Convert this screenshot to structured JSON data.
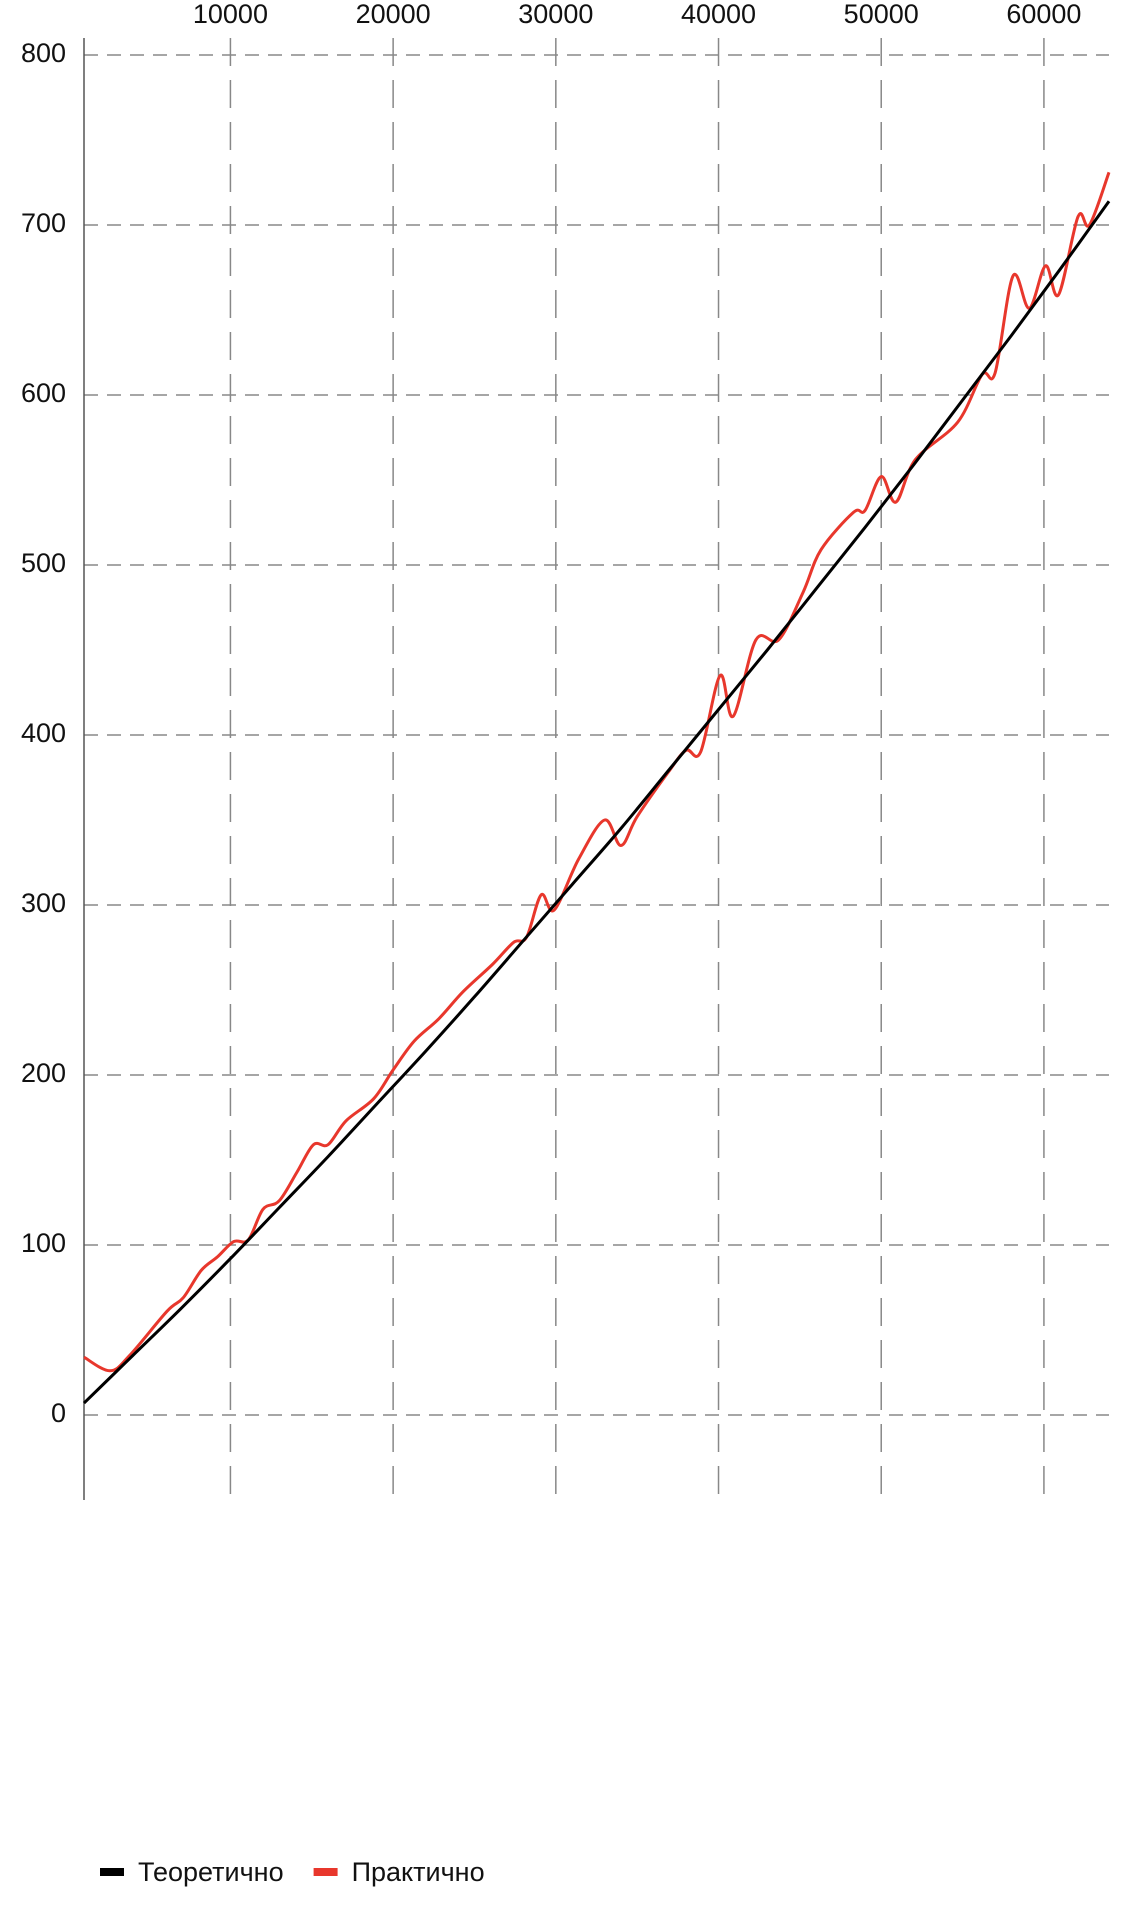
{
  "chart_data": {
    "type": "line",
    "xlim": [
      1000,
      64000
    ],
    "ylim": [
      -50,
      810
    ],
    "xticks": [
      10000,
      20000,
      30000,
      40000,
      50000,
      60000
    ],
    "yticks": [
      0,
      100,
      200,
      300,
      400,
      500,
      600,
      700,
      800
    ],
    "grid": true,
    "legend": "bottom-left",
    "series": [
      {
        "name": "Теоретично",
        "color": "#000000",
        "x": [
          1000,
          4000,
          7000,
          10000,
          13000,
          16000,
          19000,
          22000,
          25000,
          28000,
          31000,
          34000,
          37000,
          40000,
          43000,
          46000,
          49000,
          52000,
          55000,
          58000,
          61000,
          64000
        ],
        "values": [
          7,
          35,
          63,
          92,
          122,
          152,
          183,
          214,
          246,
          279,
          312,
          345,
          380,
          415,
          450,
          486,
          522,
          559,
          597,
          635,
          674,
          714
        ]
      },
      {
        "name": "Практично",
        "color": "#e8372c",
        "x": [
          1000,
          2600,
          3800,
          6100,
          7100,
          8200,
          9200,
          10200,
          11100,
          12000,
          13000,
          14100,
          15100,
          16000,
          17100,
          18800,
          20000,
          21300,
          22800,
          24300,
          26100,
          27400,
          28200,
          29100,
          29900,
          31400,
          33000,
          34000,
          35000,
          36900,
          38000,
          38900,
          40100,
          40900,
          42300,
          43700,
          45200,
          46300,
          48300,
          49000,
          50000,
          50900,
          52100,
          54700,
          56200,
          57000,
          58100,
          59100,
          60100,
          60900,
          62100,
          62800,
          64000
        ],
        "values": [
          34,
          26,
          35,
          61,
          69,
          85,
          93,
          102,
          103,
          121,
          126,
          143,
          159,
          159,
          173,
          186,
          203,
          220,
          233,
          249,
          265,
          278,
          281,
          306,
          297,
          327,
          350,
          335,
          352,
          378,
          391,
          390,
          435,
          411,
          456,
          456,
          484,
          509,
          531,
          532,
          552,
          537,
          562,
          584,
          612,
          613,
          670,
          651,
          676,
          659,
          705,
          700,
          731
        ]
      }
    ]
  }
}
